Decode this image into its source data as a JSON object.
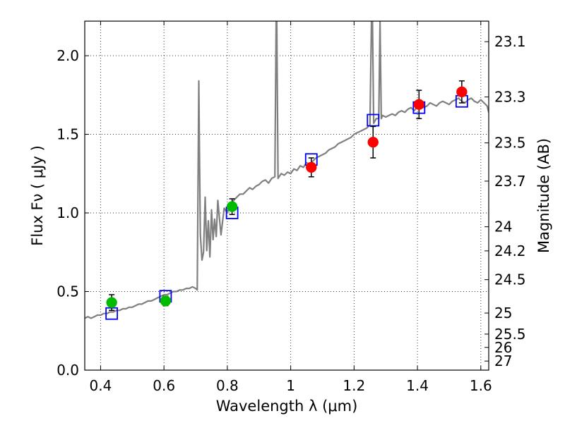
{
  "chart_data": {
    "type": "scatter",
    "xlabel": "Wavelength  λ (μm)",
    "ylabel": "Flux  Fν  ( μJy )",
    "y2label": "Magnitude (AB)",
    "xlim": [
      0.35,
      1.625
    ],
    "ylim": [
      0.0,
      2.22
    ],
    "xticks": [
      0.4,
      0.6,
      0.8,
      1.0,
      1.2,
      1.4,
      1.6
    ],
    "xtick_labels": [
      "0.4",
      "0.6",
      "0.8",
      "1",
      "1.2",
      "1.4",
      "1.6"
    ],
    "yticks": [
      0.0,
      0.5,
      1.0,
      1.5,
      2.0
    ],
    "ytick_labels": [
      "0.0",
      "0.5",
      "1.0",
      "1.5",
      "2.0"
    ],
    "mag_ticks": [
      "23.1",
      "23.3",
      "23.5",
      "23.7",
      "24",
      "24.2",
      "24.5",
      "25",
      "25.5",
      "26",
      "27"
    ],
    "grid": true,
    "colors": {
      "spectrum": "#808080",
      "green": "#00bb00",
      "red": "#ff0000",
      "model_box": "#0000ff",
      "errorbar": "#000000"
    },
    "series": [
      {
        "name": "spectrum",
        "type": "line",
        "x": [
          0.35,
          0.36,
          0.37,
          0.38,
          0.39,
          0.4,
          0.41,
          0.42,
          0.43,
          0.44,
          0.45,
          0.46,
          0.47,
          0.48,
          0.49,
          0.5,
          0.51,
          0.52,
          0.53,
          0.54,
          0.55,
          0.56,
          0.57,
          0.58,
          0.59,
          0.6,
          0.61,
          0.62,
          0.63,
          0.64,
          0.65,
          0.66,
          0.67,
          0.68,
          0.69,
          0.7,
          0.705,
          0.71,
          0.712,
          0.715,
          0.72,
          0.725,
          0.73,
          0.735,
          0.74,
          0.745,
          0.75,
          0.755,
          0.76,
          0.765,
          0.77,
          0.78,
          0.79,
          0.8,
          0.81,
          0.82,
          0.83,
          0.84,
          0.85,
          0.86,
          0.87,
          0.88,
          0.89,
          0.9,
          0.91,
          0.92,
          0.93,
          0.94,
          0.95,
          0.954,
          0.956,
          0.96,
          0.97,
          0.98,
          0.99,
          1.0,
          1.01,
          1.02,
          1.03,
          1.04,
          1.05,
          1.06,
          1.07,
          1.08,
          1.09,
          1.1,
          1.11,
          1.12,
          1.13,
          1.14,
          1.15,
          1.16,
          1.17,
          1.18,
          1.19,
          1.2,
          1.21,
          1.22,
          1.23,
          1.24,
          1.25,
          1.255,
          1.258,
          1.262,
          1.27,
          1.278,
          1.282,
          1.286,
          1.29,
          1.3,
          1.31,
          1.32,
          1.33,
          1.34,
          1.35,
          1.36,
          1.37,
          1.38,
          1.39,
          1.4,
          1.41,
          1.42,
          1.43,
          1.44,
          1.45,
          1.46,
          1.47,
          1.48,
          1.49,
          1.5,
          1.51,
          1.52,
          1.53,
          1.54,
          1.55,
          1.56,
          1.57,
          1.58,
          1.59,
          1.6,
          1.61,
          1.62,
          1.625
        ],
        "values": [
          0.33,
          0.34,
          0.33,
          0.34,
          0.35,
          0.35,
          0.36,
          0.36,
          0.37,
          0.37,
          0.38,
          0.38,
          0.39,
          0.39,
          0.4,
          0.4,
          0.41,
          0.42,
          0.42,
          0.43,
          0.44,
          0.44,
          0.45,
          0.46,
          0.47,
          0.48,
          0.48,
          0.49,
          0.5,
          0.5,
          0.51,
          0.51,
          0.52,
          0.52,
          0.53,
          0.52,
          0.51,
          1.84,
          1.4,
          0.86,
          0.7,
          0.75,
          1.1,
          0.76,
          0.95,
          0.72,
          1.02,
          0.83,
          0.96,
          0.85,
          1.08,
          0.86,
          1.03,
          1.0,
          1.06,
          1.08,
          1.1,
          1.12,
          1.12,
          1.14,
          1.16,
          1.15,
          1.17,
          1.18,
          1.2,
          1.21,
          1.19,
          1.22,
          1.23,
          2.22,
          2.22,
          1.22,
          1.25,
          1.24,
          1.26,
          1.25,
          1.28,
          1.27,
          1.3,
          1.29,
          1.32,
          1.31,
          1.33,
          1.35,
          1.36,
          1.37,
          1.38,
          1.4,
          1.41,
          1.42,
          1.44,
          1.45,
          1.46,
          1.47,
          1.48,
          1.5,
          1.51,
          1.52,
          1.53,
          1.54,
          1.56,
          2.22,
          2.22,
          1.57,
          1.6,
          1.6,
          2.22,
          1.6,
          1.62,
          1.61,
          1.62,
          1.63,
          1.62,
          1.64,
          1.65,
          1.64,
          1.66,
          1.67,
          1.65,
          1.68,
          1.69,
          1.67,
          1.68,
          1.7,
          1.69,
          1.68,
          1.7,
          1.71,
          1.7,
          1.69,
          1.71,
          1.72,
          1.73,
          1.71,
          1.7,
          1.72,
          1.73,
          1.71,
          1.7,
          1.72,
          1.7,
          1.68,
          1.64
        ]
      },
      {
        "name": "observed-green",
        "type": "scatter",
        "x": [
          0.435,
          0.605,
          0.815
        ],
        "values": [
          0.43,
          0.44,
          1.04
        ],
        "err": [
          0.05,
          0.03,
          0.05
        ]
      },
      {
        "name": "observed-red",
        "type": "scatter",
        "x": [
          1.065,
          1.26,
          1.405,
          1.54
        ],
        "values": [
          1.29,
          1.45,
          1.69,
          1.77
        ],
        "err": [
          0.06,
          0.1,
          0.09,
          0.07
        ]
      },
      {
        "name": "model-boxes",
        "type": "scatter",
        "x": [
          0.435,
          0.605,
          0.815,
          1.065,
          1.26,
          1.405,
          1.54
        ],
        "values": [
          0.36,
          0.47,
          1.0,
          1.34,
          1.59,
          1.67,
          1.71
        ]
      }
    ]
  }
}
